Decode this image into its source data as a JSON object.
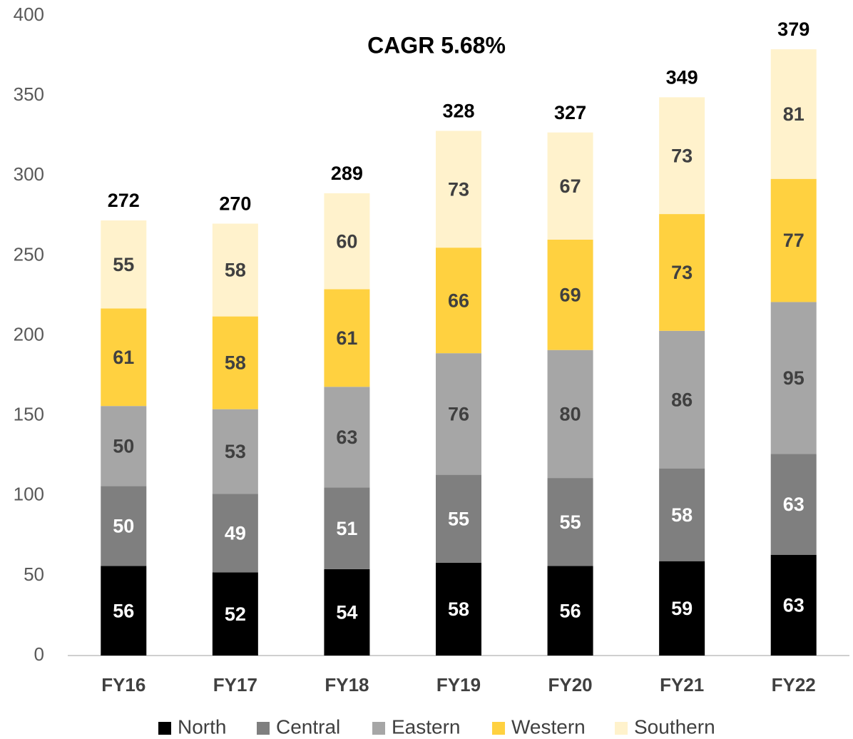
{
  "chart_data": {
    "type": "stacked_bar",
    "annotation": "CAGR 5.68%",
    "categories": [
      "FY16",
      "FY17",
      "FY18",
      "FY19",
      "FY20",
      "FY21",
      "FY22"
    ],
    "series": [
      {
        "name": "North",
        "color": "#000000",
        "label_color": "#ffffff",
        "values": [
          56,
          52,
          54,
          58,
          56,
          59,
          63
        ]
      },
      {
        "name": "Central",
        "color": "#7f7f7f",
        "label_color": "#ffffff",
        "values": [
          50,
          49,
          51,
          55,
          55,
          58,
          63
        ]
      },
      {
        "name": "Eastern",
        "color": "#a6a6a6",
        "label_color": "#404040",
        "values": [
          50,
          53,
          63,
          76,
          80,
          86,
          95
        ]
      },
      {
        "name": "Western",
        "color": "#ffd140",
        "label_color": "#404040",
        "values": [
          61,
          58,
          61,
          66,
          69,
          73,
          77
        ]
      },
      {
        "name": "Southern",
        "color": "#fff2cc",
        "label_color": "#404040",
        "values": [
          55,
          58,
          60,
          73,
          67,
          73,
          81
        ]
      }
    ],
    "totals": [
      272,
      270,
      289,
      328,
      327,
      349,
      379
    ],
    "ylim": [
      0,
      400
    ],
    "yticks": [
      0,
      50,
      100,
      150,
      200,
      250,
      300,
      350,
      400
    ],
    "grid": false
  }
}
